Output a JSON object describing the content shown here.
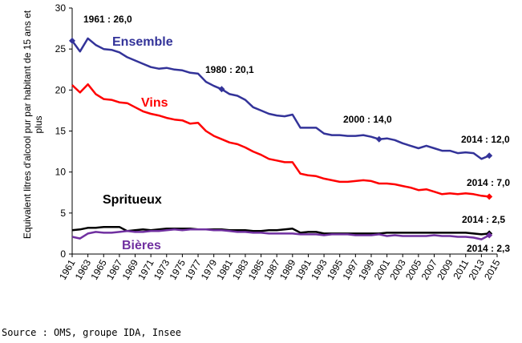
{
  "source": "Source : OMS, groupe IDA, Insee",
  "chart_data": {
    "type": "line",
    "ylabel": "Equivalent litres d'alcool pur par habitant de 15 ans et plus",
    "ylim": [
      0,
      30
    ],
    "yticks": [
      0,
      5,
      10,
      15,
      20,
      25,
      30
    ],
    "grid": false,
    "x": [
      1961,
      1962,
      1963,
      1964,
      1965,
      1966,
      1967,
      1968,
      1969,
      1970,
      1971,
      1972,
      1973,
      1974,
      1975,
      1976,
      1977,
      1978,
      1979,
      1980,
      1981,
      1982,
      1983,
      1984,
      1985,
      1986,
      1987,
      1988,
      1989,
      1990,
      1991,
      1992,
      1993,
      1994,
      1995,
      1996,
      1997,
      1998,
      1999,
      2000,
      2001,
      2002,
      2003,
      2004,
      2005,
      2006,
      2007,
      2008,
      2009,
      2010,
      2011,
      2012,
      2013,
      2014
    ],
    "xticks": [
      "1961",
      "1963",
      "1965",
      "1967",
      "1969",
      "1971",
      "1973",
      "1975",
      "1977",
      "1979",
      "1981",
      "1983",
      "1985",
      "1987",
      "1989",
      "1991",
      "1993",
      "1995",
      "1997",
      "1999",
      "2001",
      "2003",
      "2005",
      "2007",
      "2009",
      "2011",
      "2013",
      "2015"
    ],
    "series": [
      {
        "name": "Ensemble",
        "color": "#333399",
        "values": [
          26.0,
          24.7,
          26.3,
          25.5,
          25.0,
          24.9,
          24.6,
          24.0,
          23.6,
          23.2,
          22.8,
          22.6,
          22.7,
          22.5,
          22.4,
          22.1,
          22.0,
          21.0,
          20.5,
          20.1,
          19.5,
          19.3,
          18.8,
          17.9,
          17.5,
          17.1,
          16.9,
          16.8,
          17.0,
          15.4,
          15.4,
          15.4,
          14.7,
          14.5,
          14.5,
          14.4,
          14.4,
          14.5,
          14.3,
          14.0,
          14.1,
          13.9,
          13.5,
          13.2,
          12.9,
          13.2,
          12.9,
          12.6,
          12.6,
          12.3,
          12.4,
          12.3,
          11.6,
          12.0
        ]
      },
      {
        "name": "Vins",
        "color": "#ff0000",
        "values": [
          20.6,
          19.7,
          20.7,
          19.5,
          18.9,
          18.8,
          18.5,
          18.4,
          17.9,
          17.4,
          17.1,
          16.9,
          16.6,
          16.4,
          16.3,
          15.9,
          16.0,
          15.0,
          14.4,
          14.0,
          13.6,
          13.4,
          13.0,
          12.5,
          12.1,
          11.6,
          11.4,
          11.2,
          11.2,
          9.8,
          9.6,
          9.5,
          9.2,
          9.0,
          8.8,
          8.8,
          8.9,
          9.0,
          8.9,
          8.6,
          8.6,
          8.5,
          8.3,
          8.1,
          7.8,
          7.9,
          7.6,
          7.3,
          7.4,
          7.3,
          7.4,
          7.3,
          7.1,
          7.0
        ]
      },
      {
        "name": "Spritueux",
        "color": "#000000",
        "values": [
          2.9,
          3.0,
          3.2,
          3.2,
          3.3,
          3.3,
          3.3,
          2.8,
          2.9,
          3.0,
          2.9,
          3.0,
          3.1,
          3.1,
          3.1,
          3.1,
          3.0,
          3.0,
          3.0,
          3.0,
          2.9,
          2.9,
          2.9,
          2.8,
          2.8,
          2.9,
          2.9,
          3.0,
          3.1,
          2.6,
          2.7,
          2.7,
          2.5,
          2.5,
          2.5,
          2.5,
          2.5,
          2.5,
          2.5,
          2.5,
          2.6,
          2.6,
          2.6,
          2.6,
          2.6,
          2.6,
          2.6,
          2.6,
          2.6,
          2.6,
          2.6,
          2.5,
          2.4,
          2.5
        ]
      },
      {
        "name": "Bières",
        "color": "#7030a0",
        "values": [
          2.1,
          1.9,
          2.5,
          2.7,
          2.6,
          2.6,
          2.7,
          2.8,
          2.7,
          2.7,
          2.8,
          2.8,
          2.9,
          3.0,
          2.9,
          3.0,
          3.0,
          3.0,
          2.9,
          2.9,
          2.8,
          2.7,
          2.7,
          2.6,
          2.6,
          2.5,
          2.5,
          2.5,
          2.5,
          2.4,
          2.4,
          2.4,
          2.3,
          2.4,
          2.4,
          2.4,
          2.3,
          2.3,
          2.3,
          2.4,
          2.2,
          2.3,
          2.2,
          2.2,
          2.2,
          2.2,
          2.3,
          2.2,
          2.2,
          2.1,
          2.1,
          2.0,
          1.8,
          2.3
        ]
      }
    ],
    "annotations": [
      {
        "text": "1961 : 26,0",
        "x": 1961,
        "y": 26.0,
        "series": "Ensemble"
      },
      {
        "text": "1980 : 20,1",
        "x": 1980,
        "y": 20.1,
        "series": "Ensemble"
      },
      {
        "text": "2000 : 14,0",
        "x": 2000,
        "y": 14.0,
        "series": "Ensemble"
      },
      {
        "text": "2014 : 12,0",
        "x": 2014,
        "y": 12.0,
        "series": "Ensemble"
      },
      {
        "text": "2014 : 7,0",
        "x": 2014,
        "y": 7.0,
        "series": "Vins"
      },
      {
        "text": "2014 : 2,5",
        "x": 2014,
        "y": 2.5,
        "series": "Spritueux"
      },
      {
        "text": "2014 : 2,3",
        "x": 2014,
        "y": 2.3,
        "series": "Bières"
      }
    ]
  }
}
